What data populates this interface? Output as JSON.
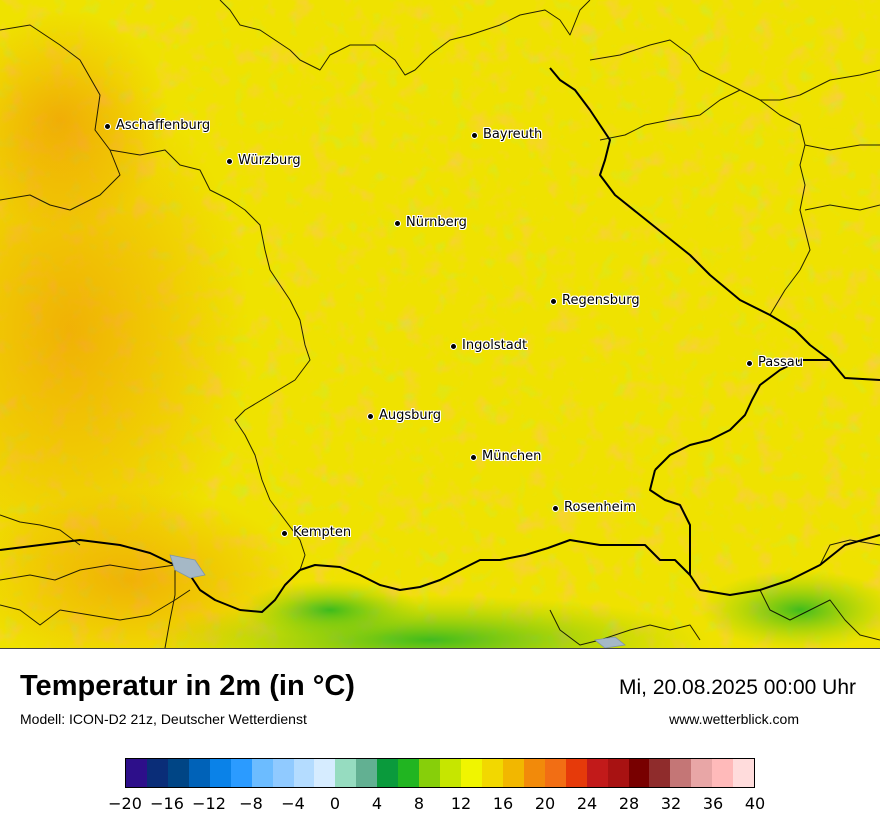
{
  "map": {
    "cities": [
      {
        "name": "Aschaffenburg"
      },
      {
        "name": "Würzburg"
      },
      {
        "name": "Bayreuth"
      },
      {
        "name": "Nürnberg"
      },
      {
        "name": "Regensburg"
      },
      {
        "name": "Ingolstadt"
      },
      {
        "name": "Passau"
      },
      {
        "name": "Augsburg"
      },
      {
        "name": "München"
      },
      {
        "name": "Rosenheim"
      },
      {
        "name": "Kempten"
      }
    ]
  },
  "footer": {
    "title": "Temperatur in 2m (in °C)",
    "model": "Modell: ICON-D2 21z, Deutscher Wetterdienst",
    "datetime": "Mi, 20.08.2025 00:00 Uhr",
    "website": "www.wetterblick.com"
  },
  "legend": {
    "colors": [
      "#2d0f8a",
      "#0a2d78",
      "#004585",
      "#0062b8",
      "#0a82e8",
      "#2b9bff",
      "#6cbcff",
      "#90caff",
      "#b4dcff",
      "#d6ecff",
      "#96dcc0",
      "#62b092",
      "#0a9a3c",
      "#21b521",
      "#87cf0a",
      "#c6e600",
      "#f0f500",
      "#f2d800",
      "#f2b700",
      "#f28a0a",
      "#f26e14",
      "#e63a0a",
      "#c21a1a",
      "#a81212",
      "#780000",
      "#8f2c2c",
      "#c47676",
      "#e8a6a6",
      "#ffbaba",
      "#ffdcdc"
    ],
    "ticks": [
      "−20",
      "−16",
      "−12",
      "−8",
      "−4",
      "0",
      "4",
      "8",
      "12",
      "16",
      "20",
      "24",
      "28",
      "32",
      "36",
      "40"
    ]
  }
}
